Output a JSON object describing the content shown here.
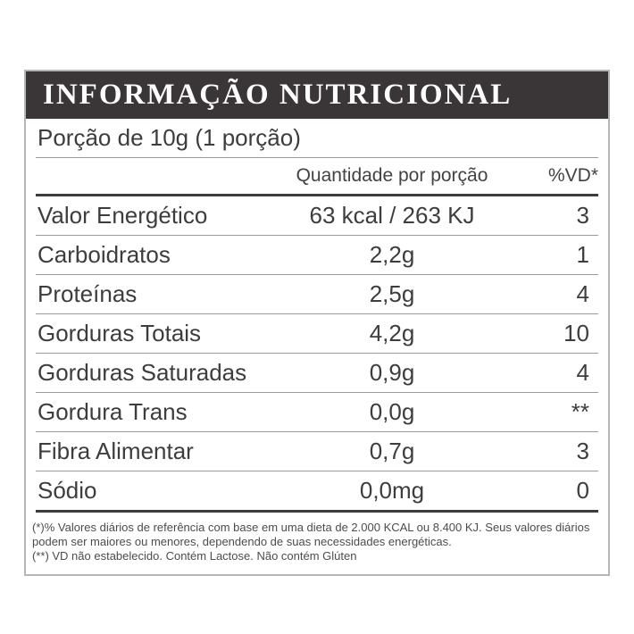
{
  "label": {
    "title": "INFORMAÇÃO NUTRICIONAL",
    "serving": "Porção de 10g (1 porção)",
    "columns": {
      "quantity": "Quantidade por porção",
      "dv": "%VD*"
    },
    "rows": [
      {
        "name": "Valor Energético",
        "quantity": "63 kcal / 263 KJ",
        "dv": "3"
      },
      {
        "name": "Carboidratos",
        "quantity": "2,2g",
        "dv": "1"
      },
      {
        "name": "Proteínas",
        "quantity": "2,5g",
        "dv": "4"
      },
      {
        "name": "Gorduras Totais",
        "quantity": "4,2g",
        "dv": "10"
      },
      {
        "name": "Gorduras Saturadas",
        "quantity": "0,9g",
        "dv": "4"
      },
      {
        "name": "Gordura Trans",
        "quantity": "0,0g",
        "dv": "**"
      },
      {
        "name": "Fibra Alimentar",
        "quantity": "0,7g",
        "dv": "3"
      },
      {
        "name": "Sódio",
        "quantity": "0,0mg",
        "dv": "0"
      }
    ],
    "footnotes": [
      "(*)% Valores diários de referência com base em uma dieta de 2.000 KCAL ou 8.400 KJ. Seus valores diários podem ser maiores ou menores, dependendo de suas necessidades energéticas.",
      "(**) VD não estabelecido. Contém Lactose. Não contém Glúten"
    ],
    "colors": {
      "header_bg": "#3a3536",
      "header_text": "#fdfdfd",
      "body_text": "#3d3d3d",
      "thin_line": "#9b9b9b",
      "thick_line": "#3c3c3c",
      "card_border": "#b5b5b5"
    }
  }
}
